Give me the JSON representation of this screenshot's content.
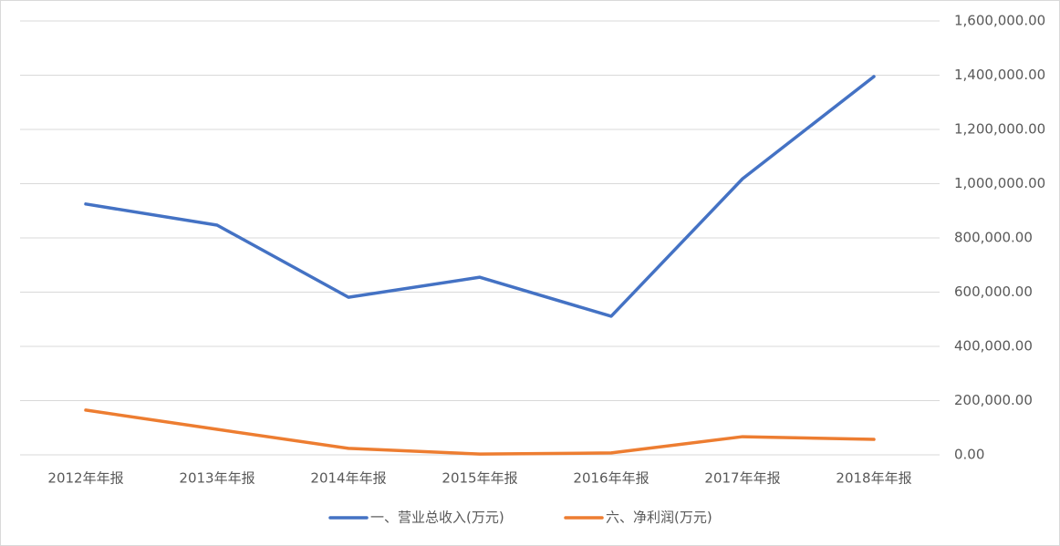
{
  "chart_data": {
    "type": "line",
    "categories": [
      "2012年年报",
      "2013年年报",
      "2014年年报",
      "2015年年报",
      "2016年年报",
      "2017年年报",
      "2018年年报"
    ],
    "series": [
      {
        "name": "一、营业总收入(万元)",
        "color": "#4472c4",
        "values": [
          925000,
          847000,
          581000,
          655000,
          511000,
          1018000,
          1395000
        ]
      },
      {
        "name": "六、净利润(万元)",
        "color": "#ed7d31",
        "values": [
          165000,
          94000,
          24000,
          3000,
          7000,
          67000,
          57000
        ]
      }
    ],
    "ylim": [
      0,
      1600000
    ],
    "yticks": [
      {
        "value": 0,
        "label": "0.00"
      },
      {
        "value": 200000,
        "label": "200,000.00"
      },
      {
        "value": 400000,
        "label": "400,000.00"
      },
      {
        "value": 600000,
        "label": "600,000.00"
      },
      {
        "value": 800000,
        "label": "800,000.00"
      },
      {
        "value": 1000000,
        "label": "1,000,000.00"
      },
      {
        "value": 1200000,
        "label": "1,200,000.00"
      },
      {
        "value": 1400000,
        "label": "1,400,000.00"
      },
      {
        "value": 1600000,
        "label": "1,600,000.00"
      }
    ],
    "y_axis_side": "right",
    "grid": true,
    "legend": "bottom"
  }
}
